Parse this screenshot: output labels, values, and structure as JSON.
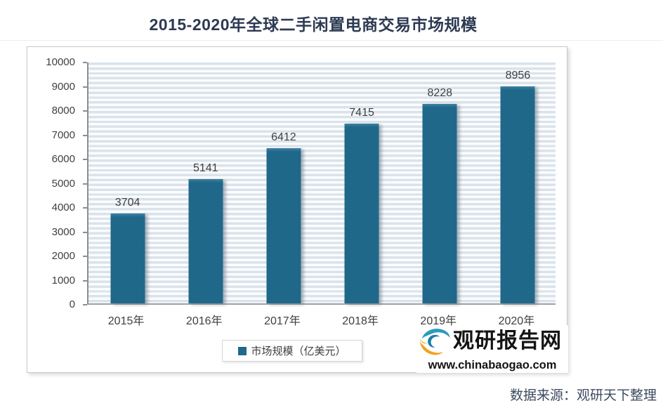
{
  "title": "2015-2020年全球二手闲置电商交易市场规模",
  "source_note": "数据来源：观研天下整理",
  "legend": {
    "label": "市场规模（亿美元）"
  },
  "watermark": {
    "brand": "观研报告网",
    "url": "www.chinabaogao.com"
  },
  "colors": {
    "bar": "#20688a",
    "title_text": "#2d3a52",
    "axis_text": "#3f3f3f",
    "gridline": "#dae3eb",
    "logo_teal": "#2b9abd",
    "logo_teal_dark": "#1e7fa6",
    "logo_orange": "#f2a11c"
  },
  "chart_data": {
    "type": "bar",
    "title": "2015-2020年全球二手闲置电商交易市场规模",
    "categories": [
      "2015年",
      "2016年",
      "2017年",
      "2018年",
      "2019年",
      "2020年"
    ],
    "values": [
      3704,
      5141,
      6412,
      7415,
      8228,
      8956
    ],
    "series_name": "市场规模（亿美元）",
    "xlabel": "",
    "ylabel": "",
    "ylim": [
      0,
      10000
    ],
    "ytick_interval": 1000,
    "yticks": [
      0,
      1000,
      2000,
      3000,
      4000,
      5000,
      6000,
      7000,
      8000,
      9000,
      10000
    ],
    "grid": "horizontal-minor",
    "legend_position": "bottom"
  }
}
